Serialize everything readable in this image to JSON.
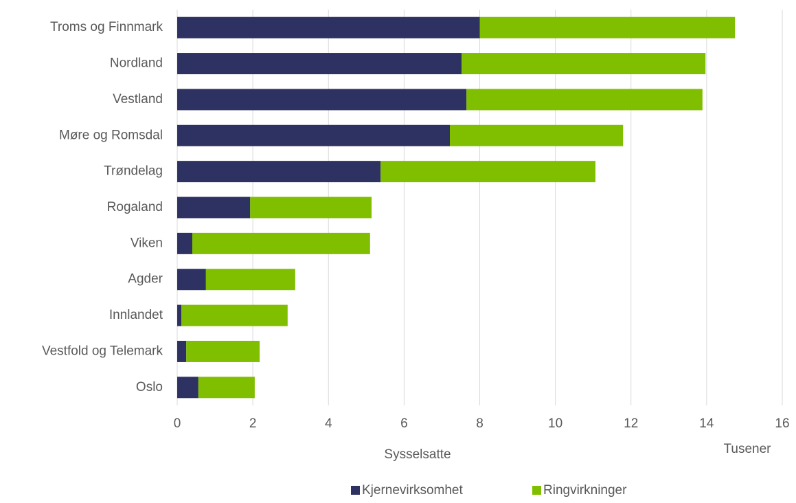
{
  "chart_data": {
    "type": "stacked-barh",
    "categories": [
      "Troms og Finnmark",
      "Nordland",
      "Vestland",
      "Møre og Romsdal",
      "Trøndelag",
      "Rogaland",
      "Viken",
      "Agder",
      "Innlandet",
      "Vestfold og Telemark",
      "Oslo"
    ],
    "series": [
      {
        "name": "Kjernevirksomhet",
        "color": "#2e3263",
        "values": [
          8.0,
          7.52,
          7.65,
          7.21,
          5.38,
          1.93,
          0.4,
          0.76,
          0.11,
          0.24,
          0.56
        ]
      },
      {
        "name": "Ringvirkninger",
        "color": "#7fbf00",
        "values": [
          6.75,
          6.45,
          6.24,
          4.58,
          5.68,
          3.21,
          4.7,
          2.36,
          2.81,
          1.94,
          1.49
        ]
      }
    ],
    "xlabel": "Sysselsatte",
    "xunit": "Tusener",
    "xlim": [
      0,
      16
    ],
    "xticks": [
      0,
      2,
      4,
      6,
      8,
      10,
      12,
      14,
      16
    ],
    "grid": true
  }
}
